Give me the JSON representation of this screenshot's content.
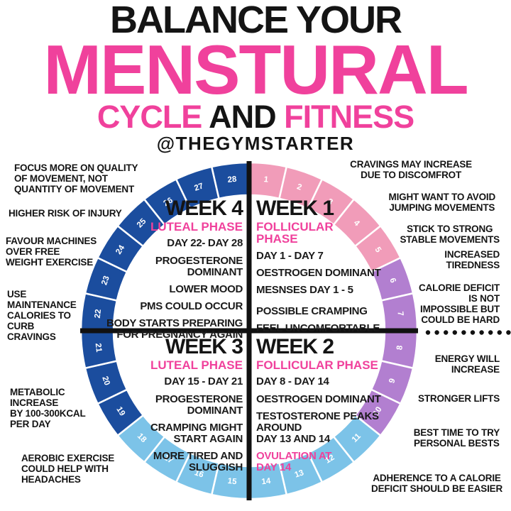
{
  "header": {
    "top_line": "BALANCE YOUR",
    "main_word": "MENSTURAL",
    "sub_left": "CYCLE",
    "sub_mid": " AND ",
    "sub_right": "FITNESS",
    "handle": "@THEGYMSTARTER"
  },
  "colors": {
    "pink_accent": "#f0419c",
    "text_black": "#141414",
    "segment_menses_pink": "#f19cb9",
    "segment_purple": "#b27fd0",
    "segment_light_blue": "#7cc3e8",
    "segment_navy": "#1b4d9e",
    "divider_black": "#111111",
    "day_number_white": "#ffffff"
  },
  "wheel": {
    "total_days": 28,
    "phases": [
      {
        "from_day": 1,
        "to_day": 5,
        "color": "#f19cb9"
      },
      {
        "from_day": 6,
        "to_day": 10,
        "color": "#b27fd0"
      },
      {
        "from_day": 11,
        "to_day": 18,
        "color": "#7cc3e8"
      },
      {
        "from_day": 19,
        "to_day": 28,
        "color": "#1b4d9e"
      }
    ]
  },
  "quadrants": {
    "week4": {
      "title": "WEEK 4",
      "phase": "LUTEAL PHASE",
      "lines": [
        "DAY 22- DAY 28",
        "PROGESTERONE\nDOMINANT",
        "LOWER MOOD",
        "PMS COULD OCCUR",
        "BODY STARTS PREPARING\nFOR PREGNANCY AGAIN"
      ]
    },
    "week1": {
      "title": "WEEK 1",
      "phase": "FOLLICULAR\nPHASE",
      "lines": [
        "DAY 1 - DAY 7",
        "OESTROGEN DOMINANT",
        "MESNSES DAY 1 - 5",
        "POSSIBLE CRAMPING",
        "FEEL UNCOMFORTABLE"
      ]
    },
    "week3": {
      "title": "WEEK 3",
      "phase": "LUTEAL PHASE",
      "lines": [
        "DAY 15 - DAY 21",
        "PROGESTERONE\nDOMINANT",
        "CRAMPING MIGHT\nSTART AGAIN",
        "MORE TIRED AND\nSLUGGISH"
      ]
    },
    "week2": {
      "title": "WEEK 2",
      "phase": "FOLLICULAR PHASE",
      "lines": [
        "DAY 8 - DAY 14",
        "OESTROGEN DOMINANT",
        "TESTOSTERONE PEAKS\nAROUND\nDAY 13 AND 14"
      ],
      "ovulation": "OVULATION AT\nDAY 14"
    }
  },
  "annotations": {
    "left": [
      {
        "text": "FOCUS MORE ON QUALITY\nOF MOVEMENT, NOT\nQUANTITY OF MOVEMENT"
      },
      {
        "text": "HIGHER RISK OF INJURY"
      },
      {
        "text": "FAVOUR MACHINES\nOVER FREE\nWEIGHT EXERCISE"
      },
      {
        "text": "USE\nMAINTENANCE\nCALORIES TO\nCURB\nCRAVINGS"
      },
      {
        "text": "METABOLIC\nINCREASE\nBY 100-300KCAL\nPER DAY"
      },
      {
        "text": "AEROBIC EXERCISE\nCOULD HELP WITH\nHEADACHES"
      }
    ],
    "right": [
      {
        "text": "CRAVINGS MAY INCREASE\nDUE TO DISCOMFROT"
      },
      {
        "text": "MIGHT WANT TO AVOID\nJUMPING MOVEMENTS"
      },
      {
        "text": "STICK TO STRONG\nSTABLE MOVEMENTS"
      },
      {
        "text": "INCREASED\nTIREDNESS"
      },
      {
        "text": "CALORIE DEFICIT\nIS NOT\nIMPOSSIBLE BUT\nCOULD BE HARD"
      },
      {
        "text": "ENERGY WILL\nINCREASE"
      },
      {
        "text": "STRONGER LIFTS"
      },
      {
        "text": "BEST TIME TO TRY\nPERSONAL BESTS"
      },
      {
        "text": "ADHERENCE TO A CALORIE\nDEFICIT SHOULD BE EASIER"
      }
    ]
  }
}
